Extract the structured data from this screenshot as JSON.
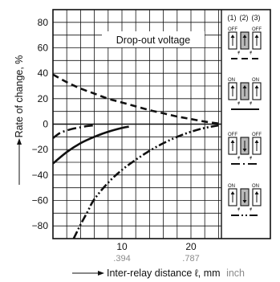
{
  "chart_data": {
    "type": "line",
    "title": "Drop-out voltage",
    "ylabel": "Rate of change, %",
    "xlabel_main": "Inter-relay distance ℓ, mm",
    "xlabel_unit2": "inch",
    "xlim": [
      0,
      25
    ],
    "ylim": [
      -90,
      90
    ],
    "x_ticks": [
      10,
      20
    ],
    "x_ticks_inch": [
      ".394",
      ".787"
    ],
    "y_ticks": [
      80,
      60,
      40,
      20,
      0,
      -20,
      -40,
      -60,
      -80
    ],
    "grid": true,
    "series": [
      {
        "style": "dashed",
        "points": [
          [
            0,
            39
          ],
          [
            2,
            33
          ],
          [
            4,
            28
          ],
          [
            6,
            24
          ],
          [
            8,
            20
          ],
          [
            10,
            17
          ],
          [
            12,
            14
          ],
          [
            14,
            11
          ],
          [
            16,
            8.5
          ],
          [
            18,
            6
          ],
          [
            20,
            4
          ],
          [
            22,
            2
          ],
          [
            24,
            0.5
          ]
        ]
      },
      {
        "style": "dash-dot",
        "points": [
          [
            0,
            -11
          ],
          [
            1,
            -7
          ],
          [
            2,
            -5
          ],
          [
            3,
            -3.5
          ],
          [
            4,
            -2.5
          ],
          [
            5,
            -1.5
          ],
          [
            6,
            -1
          ]
        ]
      },
      {
        "style": "solid",
        "points": [
          [
            0,
            -31
          ],
          [
            2,
            -22
          ],
          [
            4,
            -15
          ],
          [
            6,
            -10
          ],
          [
            8,
            -6
          ],
          [
            10,
            -3
          ],
          [
            11,
            -2
          ]
        ]
      },
      {
        "style": "dash-dot-dot",
        "points": [
          [
            3,
            -90
          ],
          [
            4,
            -79
          ],
          [
            5,
            -69
          ],
          [
            6,
            -59
          ],
          [
            8,
            -46
          ],
          [
            10,
            -36
          ],
          [
            12,
            -28
          ],
          [
            14,
            -21
          ],
          [
            16,
            -15
          ],
          [
            18,
            -10
          ],
          [
            20,
            -6
          ],
          [
            22,
            -3
          ],
          [
            24,
            -1
          ]
        ]
      }
    ],
    "legend": {
      "columns": [
        "(1)",
        "(2)",
        "(3)"
      ],
      "panels": [
        {
          "labels": [
            "OFF",
            "",
            "OFF"
          ],
          "middle": "up",
          "line": "dashed"
        },
        {
          "labels": [
            "ON",
            "",
            "ON"
          ],
          "middle": "up",
          "line": "solid"
        },
        {
          "labels": [
            "OFF",
            "",
            "OFF"
          ],
          "middle": "down",
          "line": "dash-dot"
        },
        {
          "labels": [
            "ON",
            "",
            "ON"
          ],
          "middle": "down",
          "line": "dash-dot-dot"
        }
      ]
    }
  }
}
